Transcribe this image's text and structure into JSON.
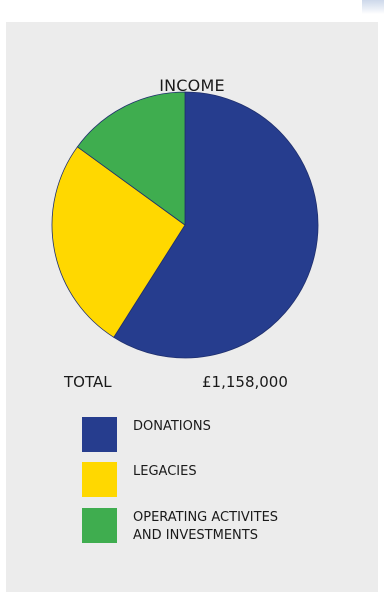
{
  "chart_data": {
    "type": "pie",
    "title": "INCOME",
    "slices": [
      {
        "label": "DONATIONS",
        "value": 59,
        "color": "#263d8e"
      },
      {
        "label": "LEGACIES",
        "value": 26,
        "color": "#ffd800"
      },
      {
        "label": "OPERATING ACTIVITES\nAND INVESTMENTS",
        "value": 15,
        "color": "#3fad4f"
      }
    ],
    "total_label": "TOTAL",
    "total_value": "£1,158,000"
  }
}
